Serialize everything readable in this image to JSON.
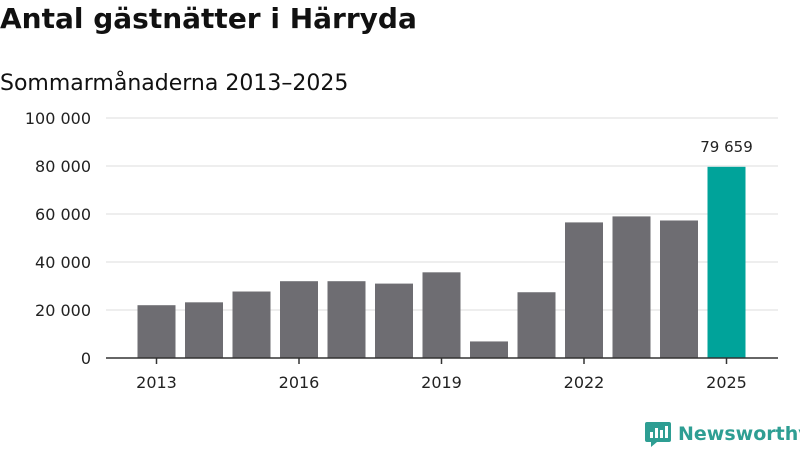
{
  "title": "Antal gästnätter i Härryda",
  "subtitle": "Sommarmånaderna 2013–2025",
  "brand": {
    "name": "Newsworthy",
    "color": "#2e9e93"
  },
  "colors": {
    "bar": "#6e6d72",
    "highlight": "#00a39a",
    "grid": "#dddddd",
    "axis": "#333333"
  },
  "chart_data": {
    "type": "bar",
    "categories": [
      "2013",
      "2014",
      "2015",
      "2016",
      "2017",
      "2018",
      "2019",
      "2020",
      "2021",
      "2022",
      "2023",
      "2024",
      "2025"
    ],
    "values": [
      22000,
      23200,
      27700,
      32000,
      32000,
      31000,
      35700,
      6900,
      27400,
      56500,
      59000,
      57300,
      79659
    ],
    "ylim": [
      0,
      100000
    ],
    "yticks": [
      0,
      20000,
      40000,
      60000,
      80000,
      100000
    ],
    "ytick_labels": [
      "0",
      "20 000",
      "40 000",
      "60 000",
      "80 000",
      "100 000"
    ],
    "xtick_labels": [
      "2013",
      "2016",
      "2019",
      "2022",
      "2025"
    ],
    "highlight_index": 12,
    "data_labels": [
      {
        "index": 12,
        "text": "79 659"
      }
    ],
    "grid": true,
    "xlabel": "",
    "ylabel": ""
  }
}
